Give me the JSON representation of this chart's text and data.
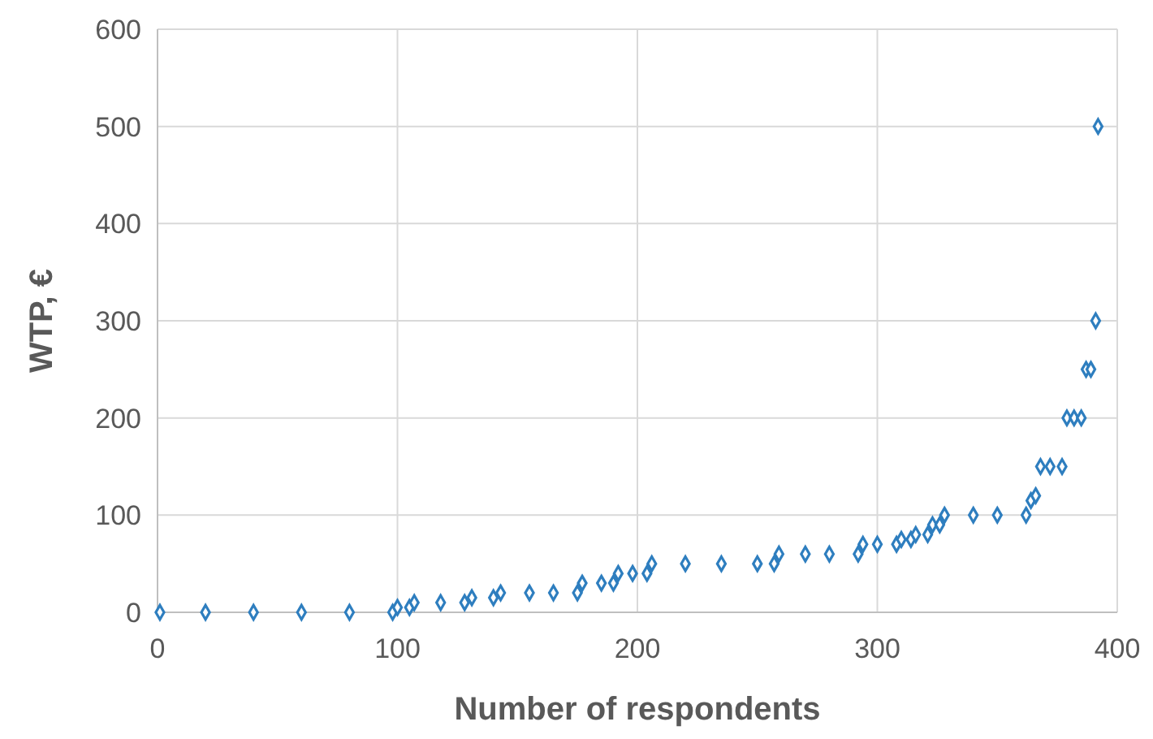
{
  "chart_data": {
    "type": "scatter",
    "xlabel": "Number of respondents",
    "ylabel": "WTP, €",
    "xlim": [
      0,
      400
    ],
    "xticks": [
      0,
      100,
      200,
      300,
      400
    ],
    "ylim": [
      0,
      600
    ],
    "yticks": [
      0,
      100,
      200,
      300,
      400,
      500,
      600
    ],
    "grid": true,
    "marker": "diamond",
    "series": [
      {
        "color": "#2e7ebf",
        "x": [
          1,
          20,
          40,
          60,
          80,
          98,
          100,
          105,
          107,
          118,
          128,
          131,
          140,
          143,
          155,
          165,
          175,
          177,
          185,
          190,
          192,
          198,
          204,
          206,
          220,
          235,
          250,
          257,
          259,
          270,
          280,
          292,
          294,
          300,
          308,
          310,
          314,
          316,
          321,
          323,
          326,
          328,
          340,
          350,
          362,
          364,
          366,
          368,
          372,
          377,
          379,
          382,
          385,
          387,
          389,
          391,
          392
        ],
        "values": [
          0,
          0,
          0,
          0,
          0,
          0,
          5,
          5,
          10,
          10,
          10,
          15,
          15,
          20,
          20,
          20,
          20,
          30,
          30,
          30,
          40,
          40,
          40,
          50,
          50,
          50,
          50,
          50,
          60,
          60,
          60,
          60,
          70,
          70,
          70,
          75,
          75,
          80,
          80,
          90,
          90,
          100,
          100,
          100,
          100,
          115,
          120,
          150,
          150,
          150,
          200,
          200,
          200,
          250,
          250,
          300,
          500
        ]
      }
    ]
  }
}
